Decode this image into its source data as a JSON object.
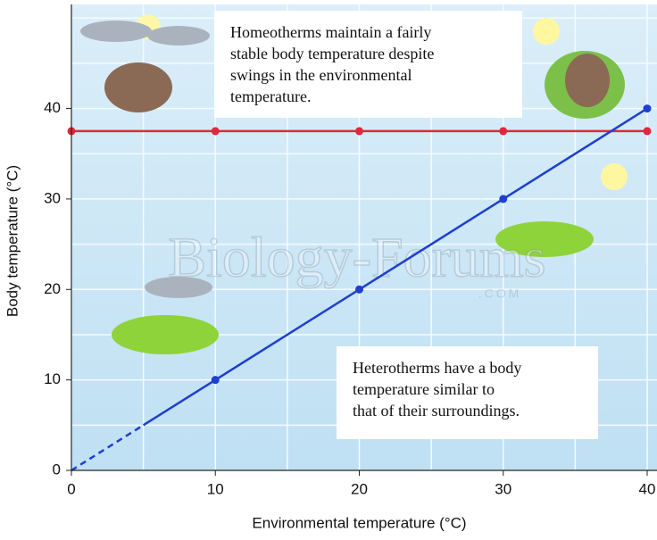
{
  "chart_data": {
    "type": "line",
    "xlabel": "Environmental temperature (°C)",
    "ylabel": "Body temperature (°C)",
    "xlim": [
      0,
      40
    ],
    "ylim": [
      0,
      51.5
    ],
    "xticks": [
      0,
      10,
      20,
      30,
      40
    ],
    "yticks": [
      0,
      10,
      20,
      30,
      40
    ],
    "xgrid": [
      0,
      5,
      10,
      15,
      20,
      25,
      30,
      35,
      40
    ],
    "ygrid": [
      0,
      5,
      10,
      15,
      20,
      25,
      30,
      35,
      40,
      45,
      50
    ],
    "series": [
      {
        "color": "#e0283c",
        "x": [
          0,
          10,
          20,
          30,
          40
        ],
        "values": [
          37.5,
          37.5,
          37.5,
          37.5,
          37.5
        ],
        "dashed": false,
        "markers": [
          true,
          true,
          true,
          true,
          true
        ]
      },
      {
        "color": "#1e3fd0",
        "x": [
          0,
          5
        ],
        "values": [
          0,
          5
        ],
        "dashed": true,
        "markers": [
          false,
          false
        ]
      },
      {
        "color": "#1e3fd0",
        "x": [
          5,
          10,
          20,
          30,
          40
        ],
        "values": [
          5,
          10,
          20,
          30,
          40
        ],
        "dashed": false,
        "markers": [
          false,
          true,
          true,
          true,
          true
        ]
      }
    ],
    "annotations": [
      {
        "lines": [
          "Homeotherms maintain a fairly",
          "stable body temperature despite",
          "swings in the environmental",
          "temperature."
        ]
      },
      {
        "lines": [
          "Heterotherms have a body",
          "temperature similar to",
          "that of their surroundings."
        ]
      }
    ],
    "watermark": [
      "Biology-Forums",
      ".COM"
    ]
  }
}
